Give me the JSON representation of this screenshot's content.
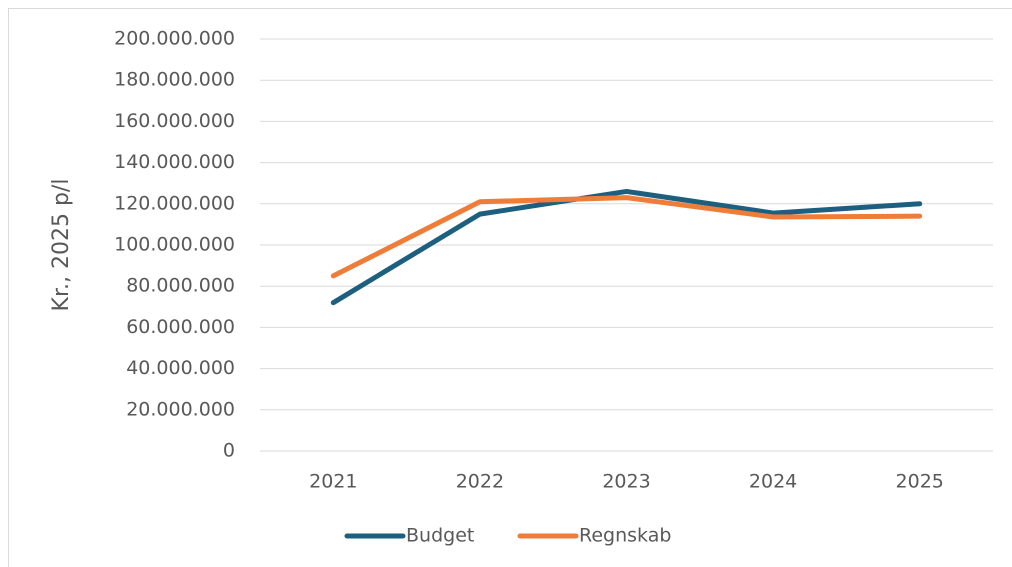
{
  "chart_data": {
    "type": "line",
    "y_axis_label": "Kr., 2025 p/l",
    "categories": [
      "2021",
      "2022",
      "2023",
      "2024",
      "2025"
    ],
    "series": [
      {
        "name": "Budget",
        "color": "#1d5f7f",
        "values": [
          72000000,
          115000000,
          126000000,
          115500000,
          120000000
        ]
      },
      {
        "name": "Regnskab",
        "color": "#ee7d3a",
        "values": [
          85000000,
          121000000,
          123000000,
          113600000,
          114000000
        ]
      }
    ],
    "ylim": [
      0,
      200000000
    ],
    "yticks": [
      0,
      {
        "value": 20000000,
        "label": "20.000.000"
      },
      {
        "value": 40000000,
        "label": "40.000.000"
      },
      {
        "value": 60000000,
        "label": "60.000.000"
      },
      {
        "value": 80000000,
        "label": "80.000.000"
      },
      {
        "value": 100000000,
        "label": "100.000.000"
      },
      {
        "value": 120000000,
        "label": "120.000.000"
      },
      {
        "value": 140000000,
        "label": "140.000.000"
      },
      {
        "value": 160000000,
        "label": "160.000.000"
      },
      {
        "value": 180000000,
        "label": "180.000.000"
      },
      {
        "value": 200000000,
        "label": "200.000.000"
      }
    ],
    "grid": true,
    "legend": "bottom"
  }
}
